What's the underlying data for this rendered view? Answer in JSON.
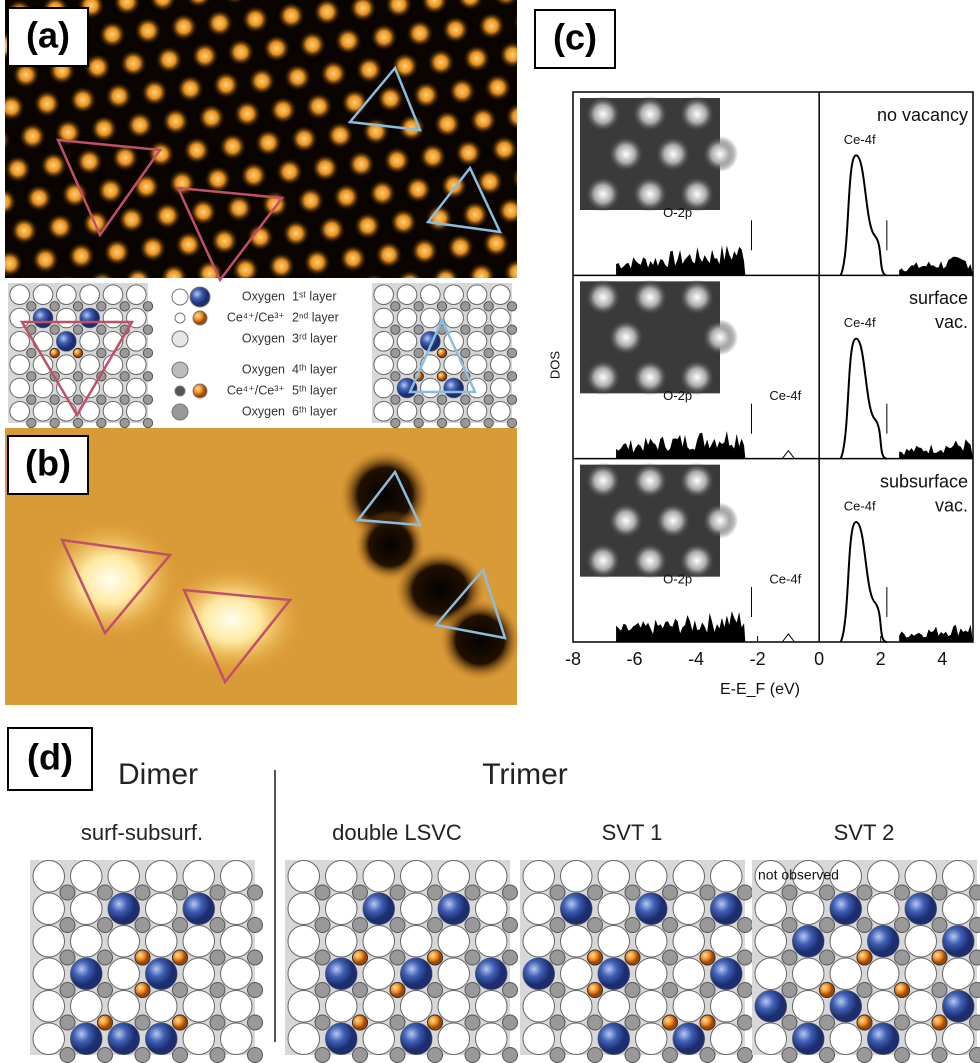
{
  "panels": {
    "a": "(a)",
    "b": "(b)",
    "c": "(c)",
    "d": "(d)"
  },
  "legend": [
    {
      "species": "Oxygen",
      "layer": "1ˢᵗ layer"
    },
    {
      "species": "Ce⁴⁺/Ce³⁺",
      "layer": "2ⁿᵈ layer"
    },
    {
      "species": "Oxygen",
      "layer": "3ʳᵈ layer"
    },
    {
      "species": "Oxygen",
      "layer": "4ᵗʰ layer"
    },
    {
      "species": "Ce⁴⁺/Ce³⁺",
      "layer": "5ᵗʰ layer"
    },
    {
      "species": "Oxygen",
      "layer": "6ᵗʰ layer"
    }
  ],
  "dos": {
    "ylabel": "DOS",
    "xlabel": "E-E_F (eV)",
    "xlim": [
      -8,
      5
    ],
    "xticks": [
      -8,
      -6,
      -4,
      -2,
      0,
      2,
      4
    ],
    "rows": [
      {
        "title": [
          "no vacancy"
        ],
        "o2p": "O-2p",
        "ce4f_right": "Ce-4f"
      },
      {
        "title": [
          "surface",
          "vac."
        ],
        "o2p": "O-2p",
        "ce4f_gap": "Ce-4f",
        "ce4f_right": "Ce-4f"
      },
      {
        "title": [
          "subsurface",
          "vac."
        ],
        "o2p": "O-2p",
        "ce4f_gap": "Ce-4f",
        "ce4f_right": "Ce-4f"
      }
    ]
  },
  "models": {
    "dimer": "Dimer",
    "trimer": "Trimer",
    "names": [
      "surf-subsurf.",
      "double LSVC",
      "SVT 1",
      "SVT 2"
    ],
    "note": "not observed"
  }
}
